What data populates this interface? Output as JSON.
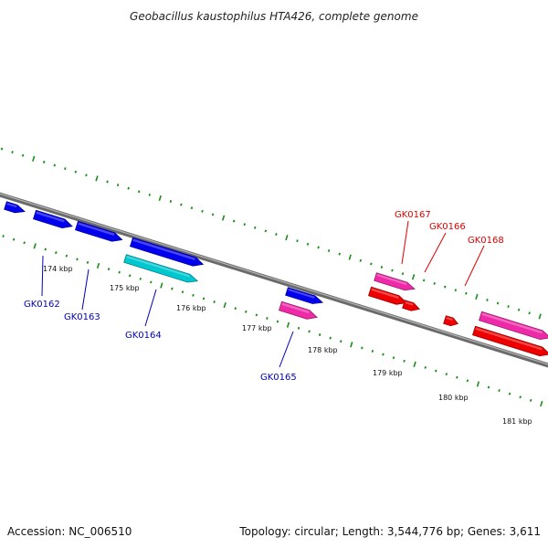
{
  "title": "Geobacillus kaustophilus HTA426, complete genome",
  "footer": {
    "accession": "Accession: NC_006510",
    "info": "Topology: circular; Length: 3,544,776 bp; Genes: 3,611"
  },
  "colors": {
    "forward_gene": "#0000ee",
    "forward_gene_alt": "#00c8d0",
    "reverse_gene": "#ee0000",
    "reverse_gene_alt": "#ee2aa8",
    "forward_label": "#0000bb",
    "reverse_label": "#dd0000",
    "backbone": "#7f7f7f",
    "ticks": "#1a8c1a"
  },
  "scale_labels": [
    "174 kbp",
    "175 kbp",
    "176 kbp",
    "177 kbp",
    "178 kbp",
    "179 kbp",
    "180 kbp",
    "181 kbp"
  ],
  "forward_genes": [
    {
      "label": "",
      "color": "#0000ee"
    },
    {
      "label": "",
      "color": "#0000ee"
    },
    {
      "label": "GK0162",
      "color": "#0000ee"
    },
    {
      "label": "GK0163",
      "color": "#0000ee"
    },
    {
      "label": "GK0164",
      "color": "#0000ee"
    },
    {
      "label": "GK0164",
      "color": "#00c8d0"
    },
    {
      "label": "GK0165",
      "color": "#0000ee"
    },
    {
      "label": "GK0165",
      "color": "#ee2aa8"
    }
  ],
  "reverse_genes": [
    {
      "label": "GK0167",
      "color": "#ee2aa8"
    },
    {
      "label": "GK0167",
      "color": "#ee0000"
    },
    {
      "label": "GK0166",
      "color": "#ee0000"
    },
    {
      "label": "GK0168",
      "color": "#ee0000"
    },
    {
      "label": "",
      "color": "#ee2aa8"
    },
    {
      "label": "",
      "color": "#ee0000"
    }
  ],
  "gene_labels": {
    "forward": [
      "GK0162",
      "GK0163",
      "GK0164",
      "GK0165"
    ],
    "reverse": [
      "GK0167",
      "GK0166",
      "GK0168"
    ]
  }
}
